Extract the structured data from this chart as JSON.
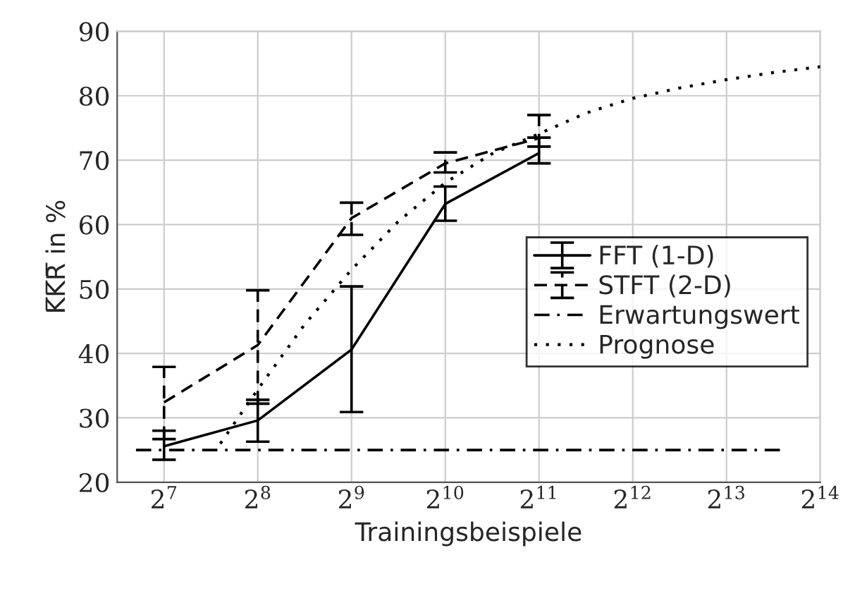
{
  "chart_data": {
    "type": "line",
    "xlabel": "Trainingsbeispiele",
    "ylabel": "K̅K̅R̅ in %",
    "log": "x",
    "xlim": [
      90.51,
      16384
    ],
    "xticks": [
      {
        "value": 128,
        "label": "2$^{7}$"
      },
      {
        "value": 256,
        "label": "2$^{8}$"
      },
      {
        "value": 512,
        "label": "2$^{9}$"
      },
      {
        "value": 1024,
        "label": "2$^{10}$"
      },
      {
        "value": 2048,
        "label": "2$^{11}$"
      },
      {
        "value": 4096,
        "label": "2$^{12}$"
      },
      {
        "value": 8192,
        "label": "2$^{13}$"
      },
      {
        "value": 16384,
        "label": "2$^{14}$"
      }
    ],
    "ylim": [
      20,
      90
    ],
    "yticks": [
      20,
      30,
      40,
      50,
      60,
      70,
      80,
      90
    ],
    "grid": true,
    "legend": "right",
    "marker": "none",
    "series": [
      {
        "name": "FFT (1-D)",
        "color": "#000000",
        "line_style": "solid",
        "x": [
          128,
          256,
          512,
          1024,
          2048
        ],
        "values": [
          25.6,
          29.6,
          40.6,
          63.2,
          71.1
        ],
        "errors": [
          [
            23.5,
            28.0
          ],
          [
            26.3,
            32.8
          ],
          [
            30.9,
            50.4
          ],
          [
            60.6,
            65.9
          ],
          [
            69.5,
            73.5
          ]
        ]
      },
      {
        "name": "STFT (2-D)",
        "color": "#000000",
        "line_style": "dashed",
        "x": [
          128,
          256,
          512,
          1024,
          2048
        ],
        "values": [
          32.4,
          41.3,
          61.0,
          69.5,
          73.4
        ],
        "errors": [
          [
            26.7,
            37.9
          ],
          [
            32.2,
            49.8
          ],
          [
            58.4,
            63.4
          ],
          [
            68.1,
            71.2
          ],
          [
            72.1,
            77.0
          ]
        ]
      },
      {
        "name": "Erwartungswert",
        "color": "#000000",
        "line_style": "dashdot",
        "x": [
          104,
          12400
        ],
        "values": [
          25,
          25
        ]
      },
      {
        "name": "Prognose",
        "color": "#000000",
        "line_style": "dotted",
        "x": [
          194,
          256,
          362,
          512,
          724,
          1024,
          1448,
          2048,
          2896,
          4096,
          5793,
          8192,
          11585,
          16384
        ],
        "values": [
          26.0,
          34.4,
          44.5,
          53.0,
          60.5,
          66.5,
          71.0,
          74.1,
          77.3,
          79.6,
          81.2,
          82.5,
          83.6,
          84.5
        ]
      }
    ]
  }
}
